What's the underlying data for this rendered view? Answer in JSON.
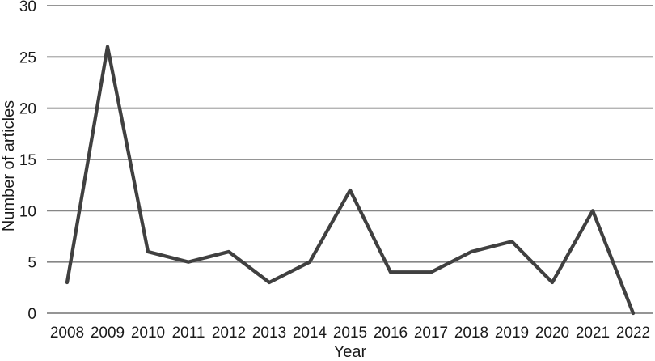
{
  "chart_data": {
    "type": "line",
    "title": "",
    "xlabel": "Year",
    "ylabel": "Number of articles",
    "categories": [
      "2008",
      "2009",
      "2010",
      "2011",
      "2012",
      "2013",
      "2014",
      "2015",
      "2016",
      "2017",
      "2018",
      "2019",
      "2020",
      "2021",
      "2022"
    ],
    "series": [
      {
        "name": "Number of articles",
        "values": [
          3,
          26,
          6,
          5,
          6,
          3,
          5,
          12,
          4,
          4,
          6,
          7,
          3,
          10,
          0
        ]
      }
    ],
    "ylim": [
      0,
      30
    ],
    "yticks": [
      0,
      5,
      10,
      15,
      20,
      25,
      30
    ],
    "grid": true,
    "legend_position": "none"
  },
  "style": {
    "line_color": "#404040",
    "gridline_color": "#868686",
    "text_color": "#1a1a1a",
    "background_color": "#ffffff"
  }
}
